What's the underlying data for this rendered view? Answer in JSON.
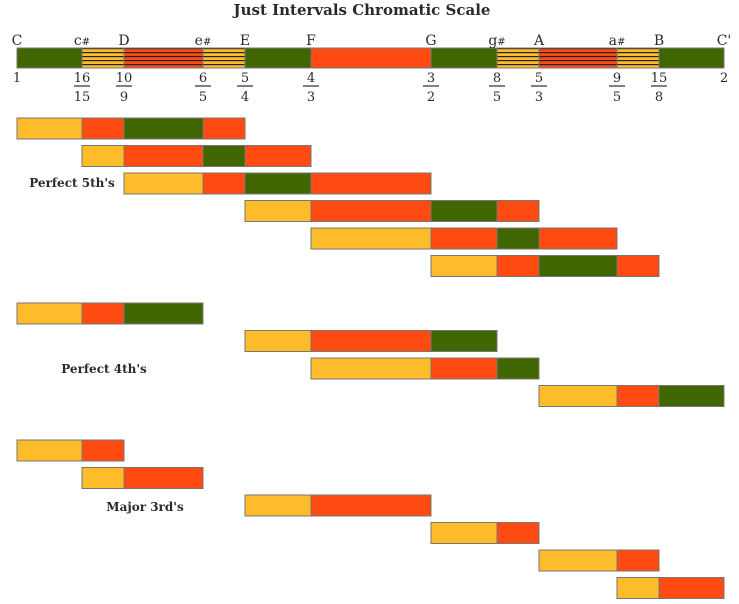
{
  "title": "Just Intervals Chromatic Scale",
  "colors": {
    "green": "#3f6600",
    "orange": "#ff4a12",
    "yellow": "#ffbc2a",
    "hatch_line": "#222222",
    "outline": "#777777"
  },
  "scale": {
    "notes": [
      {
        "name": "C",
        "sharp": false,
        "num": "1",
        "den": ""
      },
      {
        "name": "c",
        "sharp": true,
        "num": "16",
        "den": "15"
      },
      {
        "name": "D",
        "sharp": false,
        "num": "10",
        "den": "9"
      },
      {
        "name": "e",
        "sharp": true,
        "num": "6",
        "den": "5"
      },
      {
        "name": "E",
        "sharp": false,
        "num": "5",
        "den": "4"
      },
      {
        "name": "F",
        "sharp": false,
        "num": "4",
        "den": "3"
      },
      {
        "name": "G",
        "sharp": false,
        "num": "3",
        "den": "2"
      },
      {
        "name": "g",
        "sharp": true,
        "num": "8",
        "den": "5"
      },
      {
        "name": "A",
        "sharp": false,
        "num": "5",
        "den": "3"
      },
      {
        "name": "a",
        "sharp": true,
        "num": "9",
        "den": "5"
      },
      {
        "name": "B",
        "sharp": false,
        "num": "15",
        "den": "8"
      },
      {
        "name": "C'",
        "sharp": false,
        "num": "2",
        "den": ""
      }
    ],
    "sharp_symbol": "#",
    "segments": [
      "green",
      "yellow-hatch",
      "orange-hatch",
      "yellow-hatch",
      "green",
      "orange",
      "green",
      "yellow-hatch",
      "orange-hatch",
      "yellow-hatch",
      "green"
    ]
  },
  "groups": [
    {
      "label": "Perfect 5th's",
      "rows": [
        {
          "start": 0,
          "segments": [
            "yellow",
            "orange",
            "green",
            "orange"
          ]
        },
        {
          "start": 1,
          "segments": [
            "yellow",
            "orange",
            "green",
            "orange"
          ]
        },
        {
          "start": 2,
          "segments": [
            "yellow",
            "orange",
            "green",
            "orange"
          ]
        },
        {
          "start": 4,
          "segments": [
            "yellow",
            "orange",
            "green",
            "orange"
          ]
        },
        {
          "start": 5,
          "segments": [
            "yellow",
            "orange",
            "green",
            "orange"
          ]
        },
        {
          "start": 6,
          "segments": [
            "yellow",
            "orange",
            "green",
            "orange"
          ]
        }
      ]
    },
    {
      "label": "Perfect 4th's",
      "rows": [
        {
          "start": 0,
          "segments": [
            "yellow",
            "orange",
            "green"
          ]
        },
        {
          "start": 4,
          "segments": [
            "yellow",
            "orange",
            "green"
          ]
        },
        {
          "start": 5,
          "segments": [
            "yellow",
            "orange",
            "green"
          ]
        },
        {
          "start": 8,
          "segments": [
            "yellow",
            "orange",
            "green"
          ]
        }
      ]
    },
    {
      "label": "Major 3rd's",
      "rows": [
        {
          "start": 0,
          "segments": [
            "yellow",
            "orange"
          ]
        },
        {
          "start": 1,
          "segments": [
            "yellow",
            "orange"
          ]
        },
        {
          "start": 4,
          "segments": [
            "yellow",
            "orange"
          ]
        },
        {
          "start": 6,
          "segments": [
            "yellow",
            "orange"
          ]
        },
        {
          "start": 8,
          "segments": [
            "yellow",
            "orange"
          ]
        },
        {
          "start": 9,
          "segments": [
            "yellow",
            "orange"
          ]
        }
      ]
    }
  ]
}
